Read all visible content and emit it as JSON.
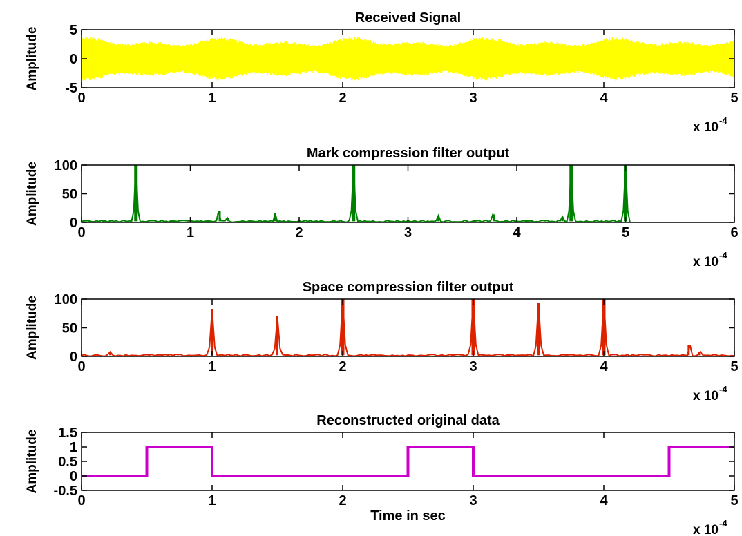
{
  "chart_data": [
    {
      "type": "line",
      "title": "Received Signal",
      "ylabel": "Amplitude",
      "xlabel": "",
      "x_multiplier": {
        "base": "x 10",
        "exponent": "-4"
      },
      "xlim": [
        0,
        5
      ],
      "ylim": [
        -5,
        5
      ],
      "xticks": [
        0,
        1,
        2,
        3,
        4,
        5
      ],
      "xtick_labels": [
        "0",
        "1",
        "2",
        "3",
        "4",
        "5"
      ],
      "yticks": [
        -5,
        0,
        5
      ],
      "ytick_labels": [
        "-5",
        "0",
        "5"
      ],
      "color": "#ffff00",
      "signal": {
        "kind": "oscillation",
        "envelope_min": 2.2,
        "envelope_max": 3.8,
        "x_start": 0,
        "x_end": 5
      }
    },
    {
      "type": "line",
      "title": "Mark compression filter output",
      "ylabel": "Amplitude",
      "xlabel": "",
      "x_multiplier": {
        "base": "x 10",
        "exponent": "-4"
      },
      "xlim": [
        0,
        6
      ],
      "ylim": [
        0,
        100
      ],
      "xticks": [
        0,
        1,
        2,
        3,
        4,
        5,
        6
      ],
      "xtick_labels": [
        "0",
        "1",
        "2",
        "3",
        "4",
        "5",
        "6"
      ],
      "yticks": [
        0,
        50,
        100
      ],
      "ytick_labels": [
        "0",
        "50",
        "100"
      ],
      "color": "#008000",
      "baseline_level": 2,
      "baseline_x_end": 5.05,
      "spikes": [
        {
          "x": 0.5,
          "y": 100
        },
        {
          "x": 1.27,
          "y": 20
        },
        {
          "x": 1.35,
          "y": 8
        },
        {
          "x": 1.78,
          "y": 16
        },
        {
          "x": 2.5,
          "y": 100
        },
        {
          "x": 3.28,
          "y": 12
        },
        {
          "x": 3.79,
          "y": 14
        },
        {
          "x": 4.42,
          "y": 10
        },
        {
          "x": 4.5,
          "y": 100
        },
        {
          "x": 5.0,
          "y": 100
        }
      ]
    },
    {
      "type": "line",
      "title": "Space compression filter output",
      "ylabel": "Amplitude",
      "xlabel": "",
      "x_multiplier": {
        "base": "x 10",
        "exponent": "-4"
      },
      "xlim": [
        0,
        5
      ],
      "ylim": [
        0,
        100
      ],
      "xticks": [
        0,
        1,
        2,
        3,
        4,
        5
      ],
      "xtick_labels": [
        "0",
        "1",
        "2",
        "3",
        "4",
        "5"
      ],
      "yticks": [
        0,
        50,
        100
      ],
      "ytick_labels": [
        "0",
        "50",
        "100"
      ],
      "color": "#dd2200",
      "baseline_level": 2,
      "baseline_x_end": 5,
      "spikes": [
        {
          "x": 0.22,
          "y": 8
        },
        {
          "x": 1.0,
          "y": 82
        },
        {
          "x": 1.5,
          "y": 70
        },
        {
          "x": 2.0,
          "y": 100
        },
        {
          "x": 3.0,
          "y": 100
        },
        {
          "x": 3.5,
          "y": 93
        },
        {
          "x": 4.0,
          "y": 100
        },
        {
          "x": 4.65,
          "y": 20
        },
        {
          "x": 4.73,
          "y": 8
        }
      ]
    },
    {
      "type": "line",
      "title": "Reconstructed original data",
      "ylabel": "Amplitude",
      "xlabel": "Time in sec",
      "x_multiplier": {
        "base": "x 10",
        "exponent": "-4"
      },
      "xlim": [
        0,
        5
      ],
      "ylim": [
        -0.5,
        1.5
      ],
      "xticks": [
        0,
        1,
        2,
        3,
        4,
        5
      ],
      "xtick_labels": [
        "0",
        "1",
        "2",
        "3",
        "4",
        "5"
      ],
      "yticks": [
        -0.5,
        0,
        0.5,
        1,
        1.5
      ],
      "ytick_labels": [
        "-0.5",
        "0",
        "0.5",
        "1",
        "1.5"
      ],
      "color": "#cc00cc",
      "x": [
        0,
        0.5,
        0.5,
        1.0,
        1.0,
        2.5,
        2.5,
        3.0,
        3.0,
        4.5,
        4.5,
        5.0
      ],
      "y": [
        0,
        0,
        1,
        1,
        0,
        0,
        1,
        1,
        0,
        0,
        1,
        1
      ]
    }
  ]
}
